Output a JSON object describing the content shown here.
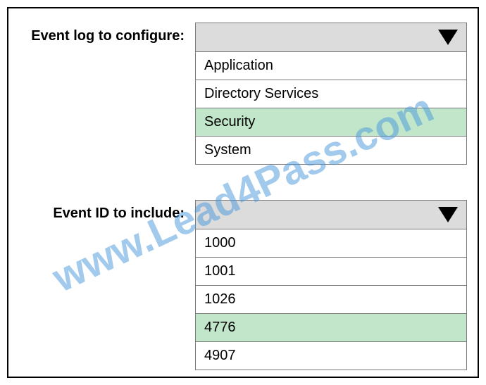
{
  "fields": {
    "eventLog": {
      "label": "Event log to configure:",
      "options": [
        {
          "text": "Application",
          "highlighted": false
        },
        {
          "text": "Directory Services",
          "highlighted": false
        },
        {
          "text": "Security",
          "highlighted": true
        },
        {
          "text": "System",
          "highlighted": false
        }
      ]
    },
    "eventId": {
      "label": "Event ID to include:",
      "options": [
        {
          "text": "1000",
          "highlighted": false
        },
        {
          "text": "1001",
          "highlighted": false
        },
        {
          "text": "1026",
          "highlighted": false
        },
        {
          "text": "4776",
          "highlighted": true
        },
        {
          "text": "4907",
          "highlighted": false
        }
      ]
    }
  },
  "watermark": {
    "text": "www.Lead4Pass.com",
    "color": "rgba(70,150,220,0.5)",
    "fontsize": 58
  },
  "colors": {
    "border": "#000000",
    "dropdownHeader": "#dcdcdc",
    "optionBorder": "#7a7a7a",
    "highlight": "#c1e6c9",
    "text": "#000000",
    "background": "#ffffff"
  }
}
